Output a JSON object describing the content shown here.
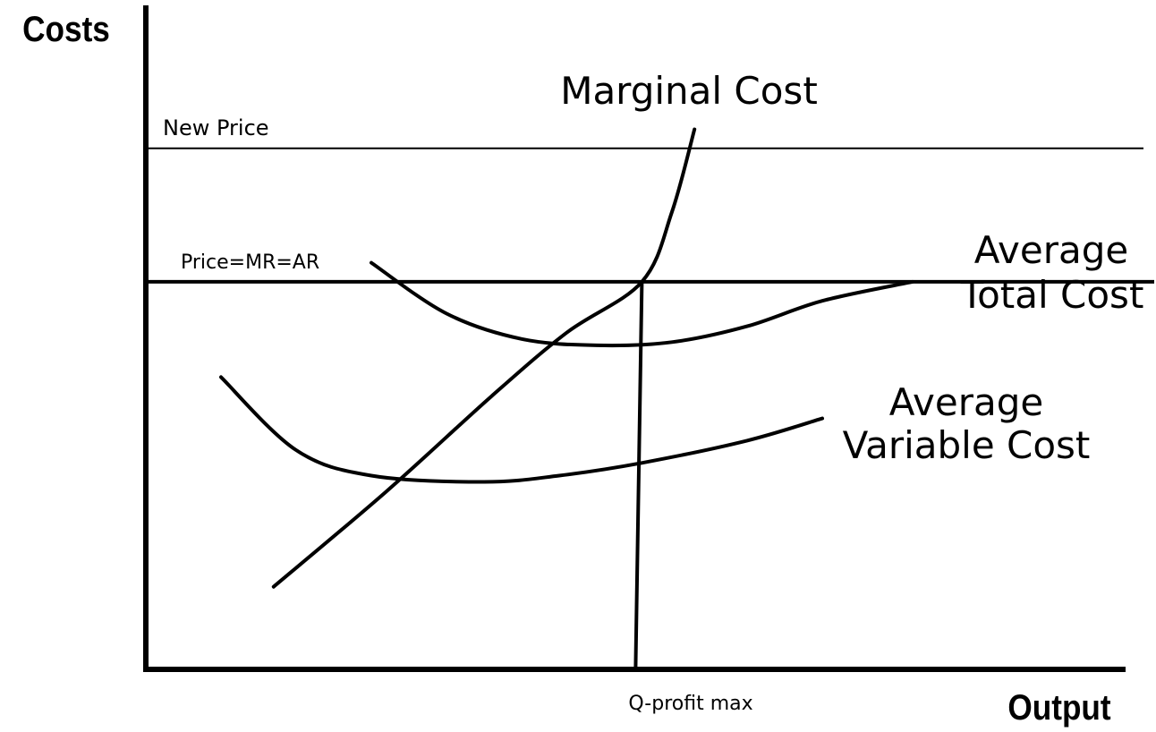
{
  "chart_data": {
    "type": "line",
    "xlabel": "Output",
    "ylabel": "Costs",
    "axis_ticks": "none",
    "x_marker": {
      "label": "Q-profit max",
      "x": 6.6
    },
    "horizontal_lines": [
      {
        "label": "New Price",
        "y": 8.2
      },
      {
        "label": "Price=MR=AR",
        "y": 6.1
      }
    ],
    "series": [
      {
        "name": "Marginal Cost",
        "label_lines": [
          "Marginal Cost"
        ],
        "points": [
          [
            1.7,
            1.3
          ],
          [
            3.2,
            2.8
          ],
          [
            4.6,
            4.3
          ],
          [
            5.6,
            5.3
          ],
          [
            6.6,
            6.1
          ],
          [
            7.0,
            7.2
          ],
          [
            7.3,
            8.5
          ]
        ]
      },
      {
        "name": "Average Total Cost",
        "label_lines": [
          "Average",
          "Total Cost"
        ],
        "points": [
          [
            3.0,
            6.4
          ],
          [
            4.0,
            5.6
          ],
          [
            5.0,
            5.2
          ],
          [
            6.0,
            5.1
          ],
          [
            7.0,
            5.15
          ],
          [
            8.0,
            5.4
          ],
          [
            9.0,
            5.8
          ],
          [
            10.2,
            6.1
          ]
        ]
      },
      {
        "name": "Average Variable Cost",
        "label_lines": [
          "Average",
          "Variable Cost"
        ],
        "points": [
          [
            1.0,
            4.6
          ],
          [
            2.0,
            3.45
          ],
          [
            3.0,
            3.05
          ],
          [
            4.5,
            2.95
          ],
          [
            5.5,
            3.05
          ],
          [
            6.6,
            3.25
          ],
          [
            8.0,
            3.6
          ],
          [
            9.0,
            3.95
          ]
        ]
      }
    ]
  }
}
